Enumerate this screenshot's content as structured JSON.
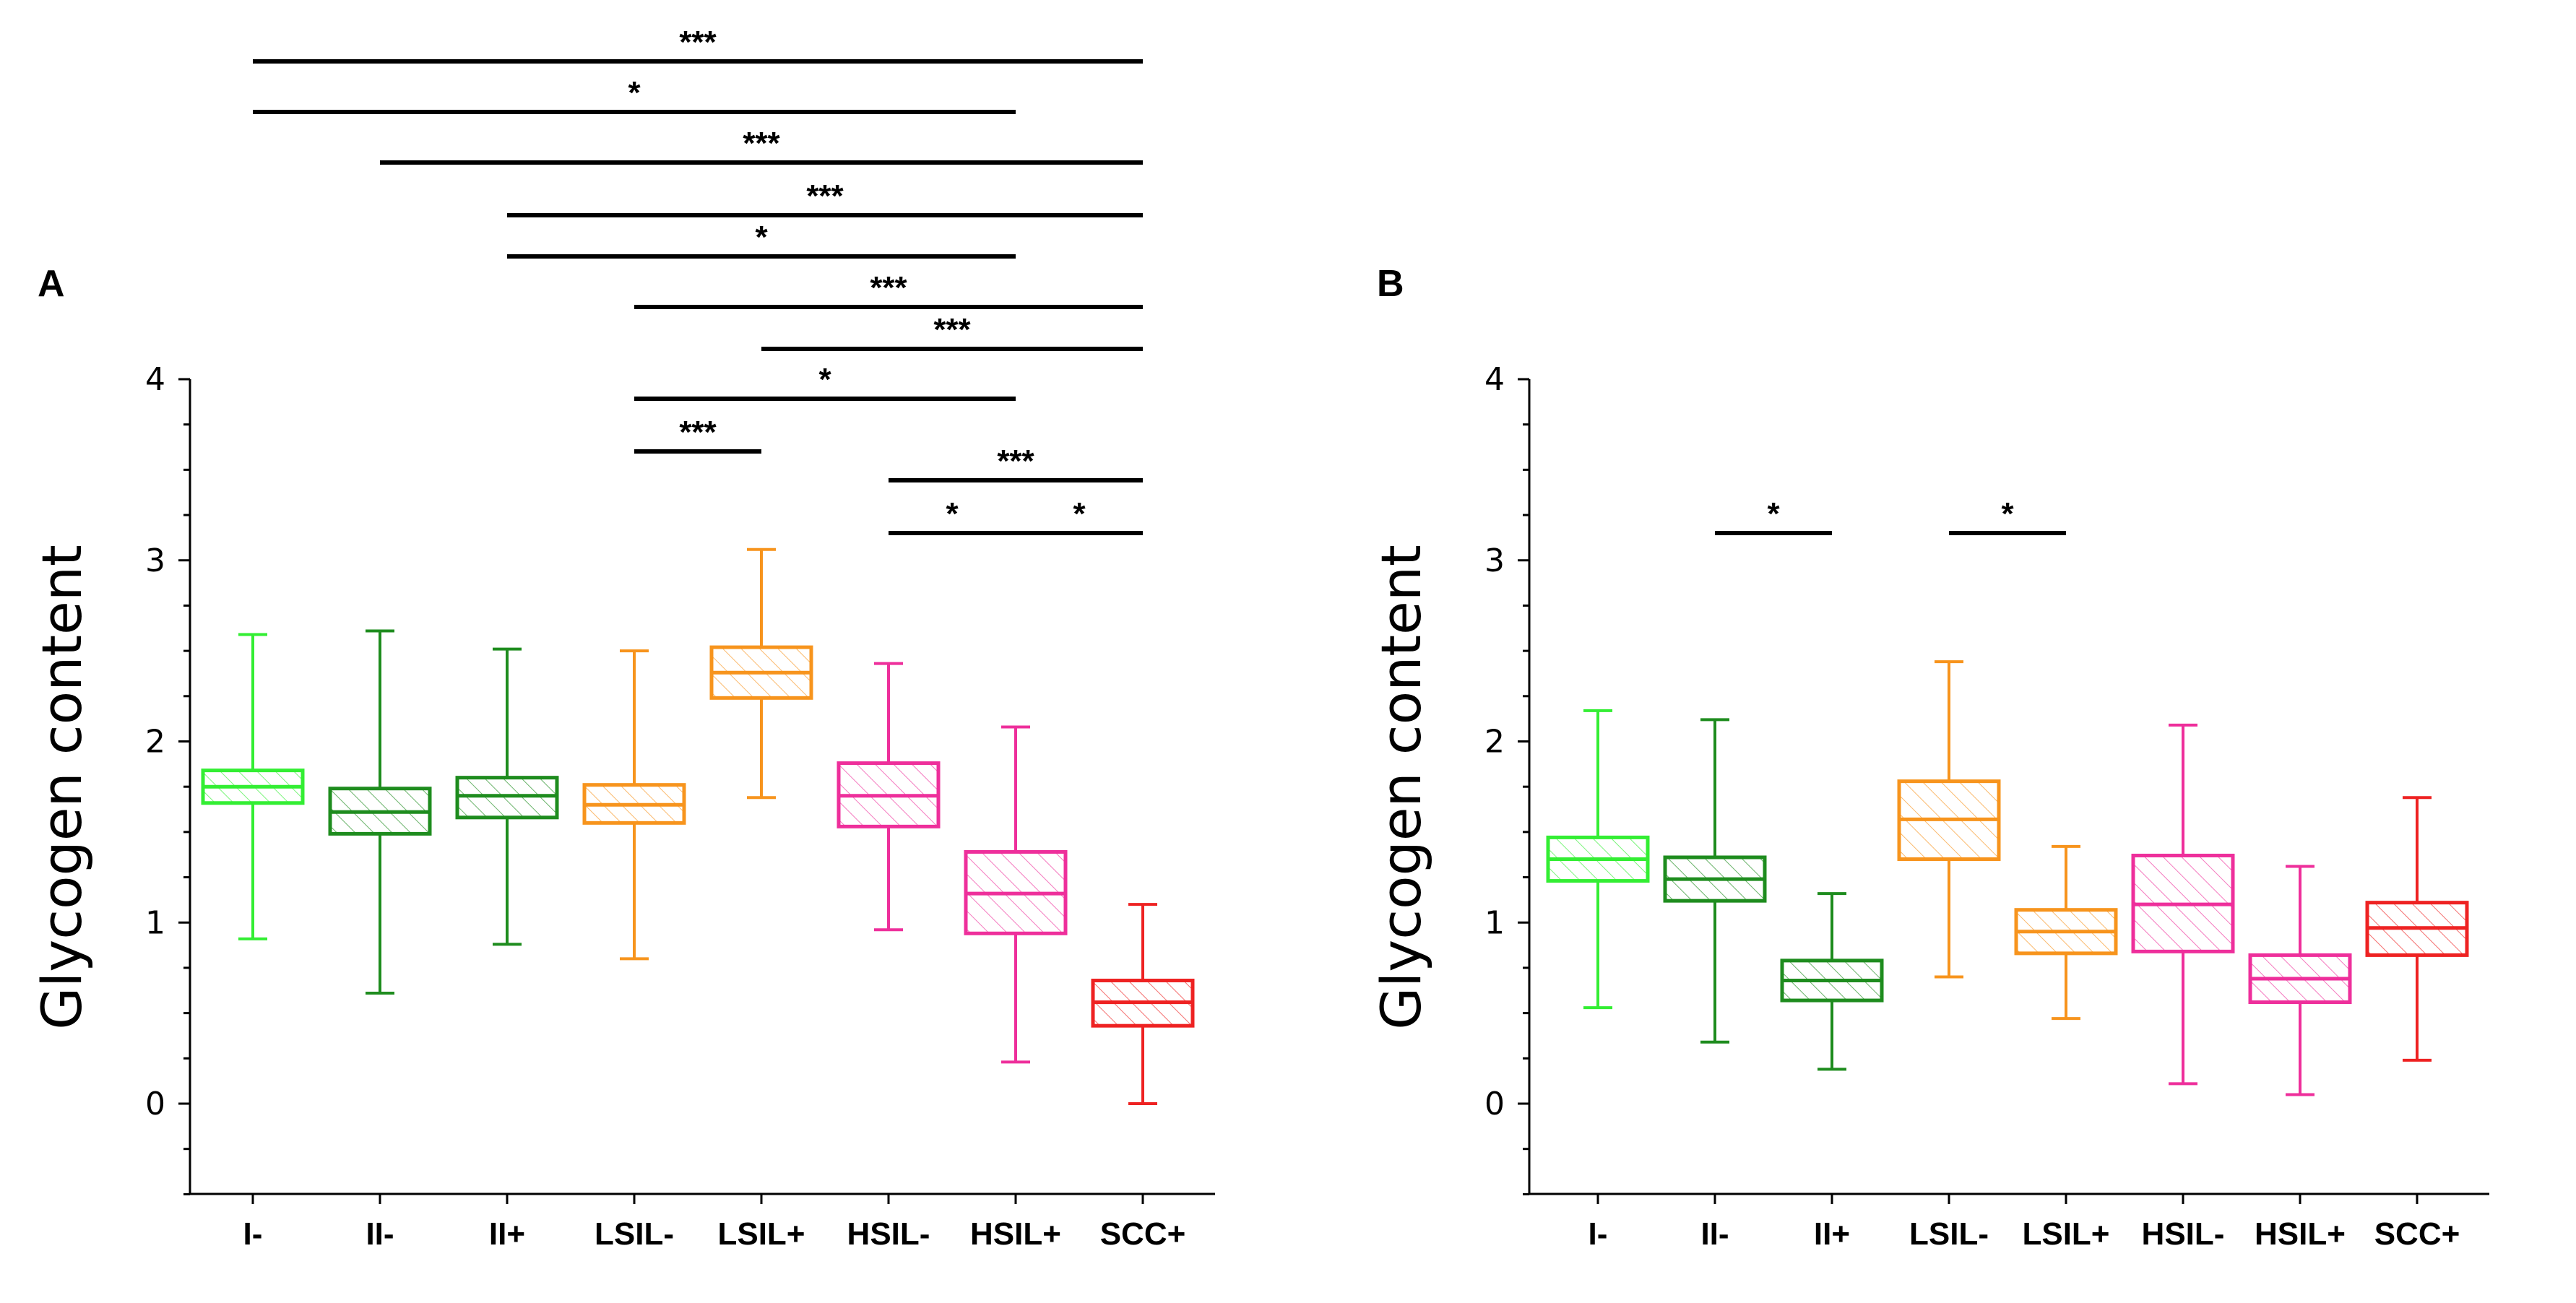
{
  "chart_data": [
    {
      "type": "box",
      "panel_label": "A",
      "ylabel": "Glycogen content",
      "ylim": [
        -0.5,
        4
      ],
      "yticks": [
        0,
        1,
        2,
        3,
        4
      ],
      "categories": [
        "I-",
        "II-",
        "II+",
        "LSIL-",
        "LSIL+",
        "HSIL-",
        "HSIL+",
        "SCC+"
      ],
      "colors": [
        "#33ee33",
        "#1e8c1e",
        "#1e8c1e",
        "#f7941d",
        "#f7941d",
        "#ee2f9b",
        "#ee2f9b",
        "#ee2222"
      ],
      "boxes": [
        {
          "min": 0.91,
          "q1": 1.66,
          "median": 1.75,
          "q3": 1.84,
          "max": 2.59
        },
        {
          "min": 0.61,
          "q1": 1.49,
          "median": 1.61,
          "q3": 1.74,
          "max": 2.61
        },
        {
          "min": 0.88,
          "q1": 1.58,
          "median": 1.7,
          "q3": 1.8,
          "max": 2.51
        },
        {
          "min": 0.8,
          "q1": 1.55,
          "median": 1.65,
          "q3": 1.76,
          "max": 2.5
        },
        {
          "min": 1.69,
          "q1": 2.24,
          "median": 2.38,
          "q3": 2.52,
          "max": 3.06
        },
        {
          "min": 0.96,
          "q1": 1.53,
          "median": 1.7,
          "q3": 1.88,
          "max": 2.43
        },
        {
          "min": 0.23,
          "q1": 0.94,
          "median": 1.16,
          "q3": 1.39,
          "max": 2.08
        },
        {
          "min": 0.0,
          "q1": 0.43,
          "median": 0.56,
          "q3": 0.68,
          "max": 1.1
        }
      ],
      "significance": [
        {
          "from": "I-",
          "to": "SCC+",
          "label": "***"
        },
        {
          "from": "I-",
          "to": "HSIL+",
          "label": "*"
        },
        {
          "from": "II-",
          "to": "SCC+",
          "label": "***"
        },
        {
          "from": "II+",
          "to": "SCC+",
          "label": "***"
        },
        {
          "from": "II+",
          "to": "HSIL+",
          "label": "*"
        },
        {
          "from": "LSIL-",
          "to": "SCC+",
          "label": "***"
        },
        {
          "from": "LSIL+",
          "to": "SCC+",
          "label": "***"
        },
        {
          "from": "LSIL-",
          "to": "HSIL+",
          "label": "*"
        },
        {
          "from": "LSIL-",
          "to": "LSIL+",
          "label": "***"
        },
        {
          "from": "HSIL-",
          "to": "SCC+",
          "label": "***"
        },
        {
          "from": "HSIL-",
          "to": "HSIL+",
          "label": "*"
        },
        {
          "from": "HSIL+",
          "to": "SCC+",
          "label": "*"
        }
      ]
    },
    {
      "type": "box",
      "panel_label": "B",
      "ylabel": "Glycogen content",
      "ylim": [
        -0.5,
        4
      ],
      "yticks": [
        0,
        1,
        2,
        3,
        4
      ],
      "categories": [
        "I-",
        "II-",
        "II+",
        "LSIL-",
        "LSIL+",
        "HSIL-",
        "HSIL+",
        "SCC+"
      ],
      "colors": [
        "#33ee33",
        "#1e8c1e",
        "#1e8c1e",
        "#f7941d",
        "#f7941d",
        "#ee2f9b",
        "#ee2f9b",
        "#ee2222"
      ],
      "boxes": [
        {
          "min": 0.53,
          "q1": 1.23,
          "median": 1.35,
          "q3": 1.47,
          "max": 2.17
        },
        {
          "min": 0.34,
          "q1": 1.12,
          "median": 1.24,
          "q3": 1.36,
          "max": 2.12
        },
        {
          "min": 0.19,
          "q1": 0.57,
          "median": 0.68,
          "q3": 0.79,
          "max": 1.16
        },
        {
          "min": 0.7,
          "q1": 1.35,
          "median": 1.57,
          "q3": 1.78,
          "max": 2.44
        },
        {
          "min": 0.47,
          "q1": 0.83,
          "median": 0.95,
          "q3": 1.07,
          "max": 1.42
        },
        {
          "min": 0.11,
          "q1": 0.84,
          "median": 1.1,
          "q3": 1.37,
          "max": 2.09
        },
        {
          "min": 0.05,
          "q1": 0.56,
          "median": 0.69,
          "q3": 0.82,
          "max": 1.31
        },
        {
          "min": 0.24,
          "q1": 0.82,
          "median": 0.97,
          "q3": 1.11,
          "max": 1.69
        }
      ],
      "significance": [
        {
          "from": "II-",
          "to": "II+",
          "label": "*"
        },
        {
          "from": "LSIL-",
          "to": "LSIL+",
          "label": "*"
        }
      ]
    }
  ]
}
